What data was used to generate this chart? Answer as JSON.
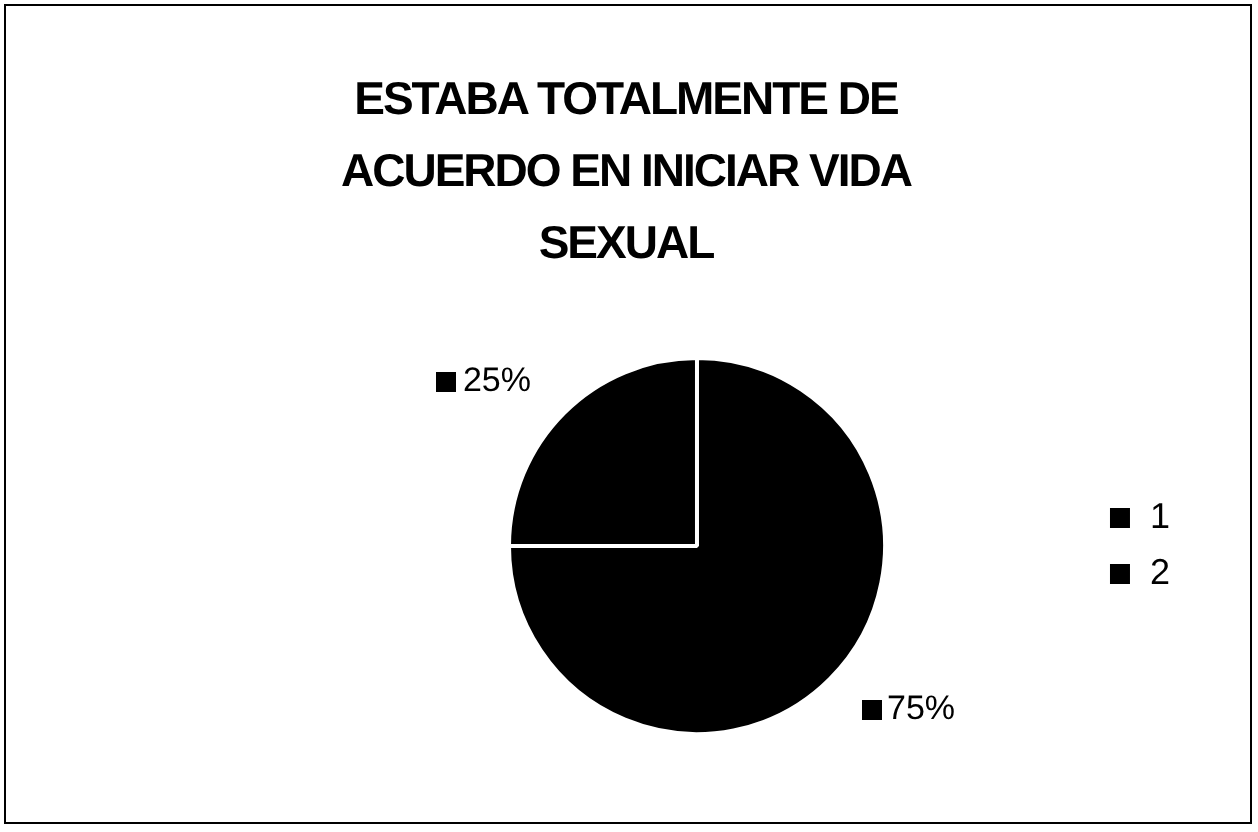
{
  "chart_data": {
    "type": "pie",
    "title": "ESTABA TOTALMENTE DE ACUERDO EN INICIAR VIDA SEXUAL",
    "categories": [
      "1",
      "2"
    ],
    "values": [
      25,
      75
    ],
    "colors": [
      "#000000",
      "#000000"
    ],
    "value_labels": [
      "25%",
      "75%"
    ],
    "legend": "right"
  }
}
